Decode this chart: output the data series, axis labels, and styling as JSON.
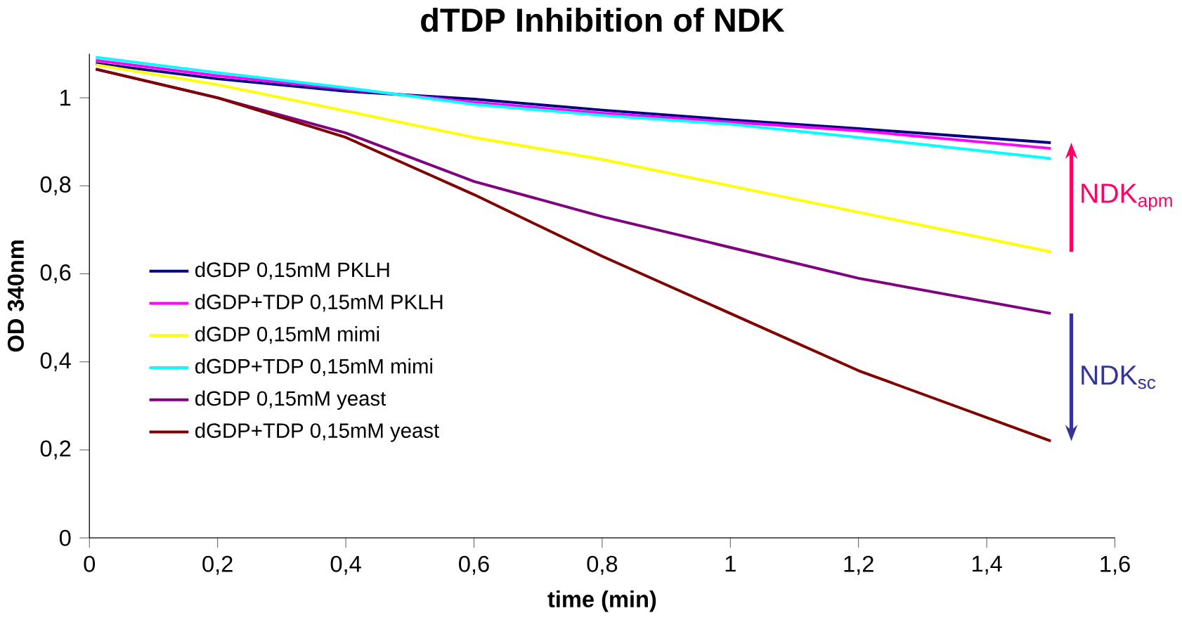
{
  "chart_data": {
    "type": "line",
    "title": "dTDP Inhibition of NDK",
    "xlabel": "time (min)",
    "ylabel": "OD 340nm",
    "x": [
      0.01,
      0.2,
      0.4,
      0.6,
      0.8,
      1.0,
      1.2,
      1.5
    ],
    "series": [
      {
        "name": "dGDP 0,15mM PKLH",
        "color": "#000080",
        "values": [
          1.078,
          1.043,
          1.015,
          0.997,
          0.972,
          0.95,
          0.93,
          0.898
        ]
      },
      {
        "name": "dGDP+TDP 0,15mM PKLH",
        "color": "#ff00ff",
        "values": [
          1.085,
          1.05,
          1.02,
          0.99,
          0.965,
          0.945,
          0.925,
          0.885
        ]
      },
      {
        "name": "dGDP 0,15mM mimi",
        "color": "#ffff00",
        "values": [
          1.075,
          1.03,
          0.97,
          0.91,
          0.86,
          0.8,
          0.74,
          0.65
        ]
      },
      {
        "name": "dGDP+TDP 0,15mM mimi",
        "color": "#00ffff",
        "values": [
          1.092,
          1.057,
          1.023,
          0.985,
          0.96,
          0.94,
          0.91,
          0.862
        ]
      },
      {
        "name": "dGDP 0,15mM yeast",
        "color": "#800080",
        "values": [
          1.065,
          1.0,
          0.92,
          0.81,
          0.73,
          0.66,
          0.59,
          0.51
        ]
      },
      {
        "name": "dGDP+TDP 0,15mM yeast",
        "color": "#800000",
        "values": [
          1.065,
          1.0,
          0.91,
          0.78,
          0.64,
          0.51,
          0.38,
          0.22
        ]
      }
    ],
    "xlim": [
      0,
      1.6
    ],
    "ylim": [
      0,
      1.1
    ],
    "xticks": [
      0,
      {
        "value": 0.2,
        "label": "0,2"
      },
      {
        "value": 0.4,
        "label": "0,4"
      },
      {
        "value": 0.6,
        "label": "0,6"
      },
      {
        "value": 0.8,
        "label": "0,8"
      },
      1,
      {
        "value": 1.2,
        "label": "1,2"
      },
      {
        "value": 1.4,
        "label": "1,4"
      },
      {
        "value": 1.6,
        "label": "1,6"
      }
    ],
    "yticks": [
      0,
      {
        "value": 0.2,
        "label": "0,2"
      },
      {
        "value": 0.4,
        "label": "0,4"
      },
      {
        "value": 0.6,
        "label": "0,6"
      },
      {
        "value": 0.8,
        "label": "0,8"
      },
      1
    ],
    "annotations": [
      "NDK$_{apm}$",
      "NDK$_{sc}$"
    ],
    "legend": "left",
    "grid": false,
    "marker": "none",
    "line_style": "solid"
  }
}
